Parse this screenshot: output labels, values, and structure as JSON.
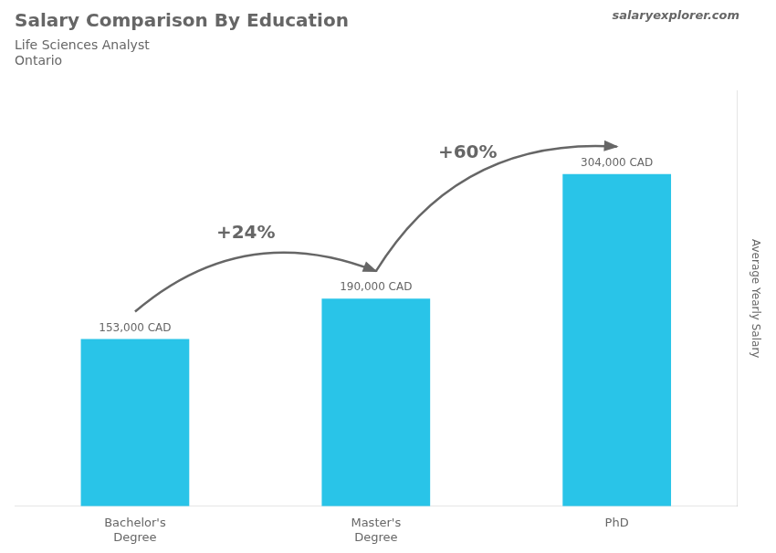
{
  "chart_data": {
    "type": "bar",
    "title": "Salary Comparison By Education",
    "subtitle": [
      "Life Sciences Analyst",
      "Ontario"
    ],
    "ylabel": "Average Yearly Salary",
    "categories": [
      "Bachelor's\nDegree",
      "Master's\nDegree",
      "PhD"
    ],
    "values": [
      153000,
      190000,
      304000
    ],
    "value_labels": [
      "153,000 CAD",
      "190,000 CAD",
      "304,000 CAD"
    ],
    "data_labels": true,
    "color": "#29c4e8",
    "ylim": [
      0,
      380000
    ],
    "grid": false,
    "tick_labels": "x",
    "annotations": [
      {
        "text": "+24%",
        "from": "Bachelor's\nDegree",
        "to": "Master's\nDegree"
      },
      {
        "text": "+60%",
        "from": "Master's\nDegree",
        "to": "PhD"
      },
      {
        "text": "salaryexplorer.com"
      }
    ]
  }
}
